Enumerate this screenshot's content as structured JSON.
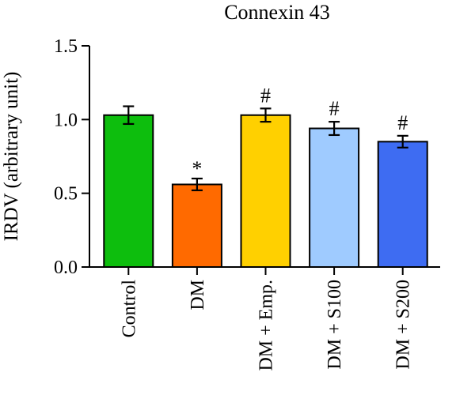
{
  "chart_data": {
    "type": "bar",
    "title": "Connexin 43",
    "xlabel": "",
    "ylabel": "IRDV (arbitrary unit)",
    "ylim": [
      0,
      1.5
    ],
    "yticks": [
      0.0,
      0.5,
      1.0,
      1.5
    ],
    "ytick_labels": [
      "0.0",
      "0.5",
      "1.0",
      "1.5"
    ],
    "categories": [
      "Control",
      "DM",
      "DM + Emp.",
      "DM + S100",
      "DM + S200"
    ],
    "values": [
      1.03,
      0.56,
      1.03,
      0.94,
      0.85
    ],
    "errors": [
      0.06,
      0.04,
      0.045,
      0.045,
      0.04
    ],
    "significance": [
      "",
      "*",
      "#",
      "#",
      "#"
    ],
    "colors": [
      "#0DBE0D",
      "#FF6A00",
      "#FFD000",
      "#9FCBFF",
      "#3E6CF2"
    ],
    "grid": false,
    "legend": "none"
  }
}
